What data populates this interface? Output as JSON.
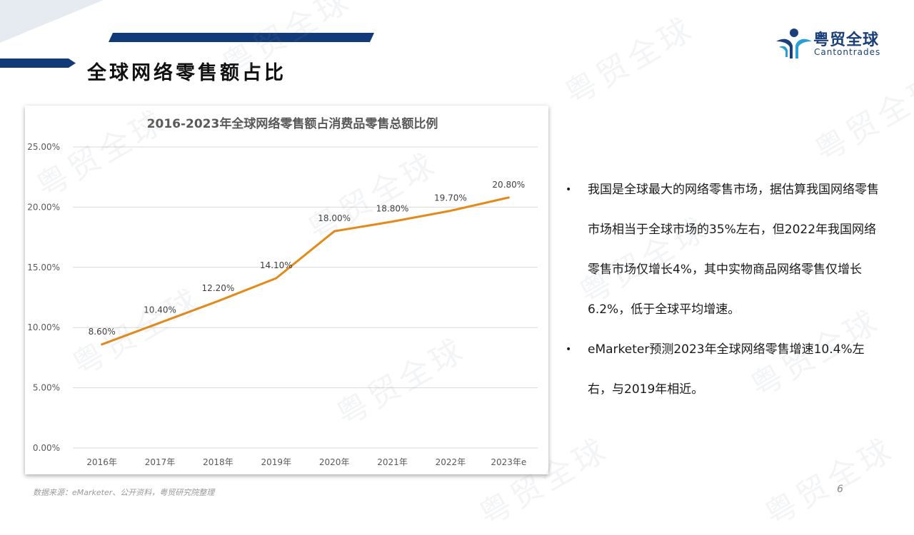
{
  "page": {
    "title": "全球网络零售额占比",
    "source": "数据来源：eMarketer、公开资料，粤贸研究院整理",
    "page_number": "6",
    "watermark": "粤贸全球"
  },
  "logo": {
    "name_cn": "粤贸全球",
    "name_en": "Cantontrades",
    "color": "#1a3f7a"
  },
  "colors": {
    "accent": "#123a78",
    "line": "#e38a1a",
    "grid": "#d9d9d9"
  },
  "bullets": [
    "我国是全球最大的网络零售市场，据估算我国网络零售市场相当于全球市场的35%左右，但2022年我国网络零售市场仅增长4%，其中实物商品网络零售仅增长6.2%，低于全球平均增速。",
    "eMarketer预测2023年全球网络零售增速10.4%左右，与2019年相近。"
  ],
  "chart_data": {
    "type": "line",
    "title": "2016-2023年全球网络零售额占消费品零售总额比例",
    "categories": [
      "2016年",
      "2017年",
      "2018年",
      "2019年",
      "2020年",
      "2021年",
      "2022年",
      "2023年e"
    ],
    "values": [
      8.6,
      10.4,
      12.2,
      14.1,
      18.0,
      18.8,
      19.7,
      20.8
    ],
    "value_labels": [
      "8.60%",
      "10.40%",
      "12.20%",
      "14.10%",
      "18.00%",
      "18.80%",
      "19.70%",
      "20.80%"
    ],
    "y_ticks": [
      0,
      5,
      10,
      15,
      20,
      25
    ],
    "y_tick_labels": [
      "0.00%",
      "5.00%",
      "10.00%",
      "15.00%",
      "20.00%",
      "25.00%"
    ],
    "ylim": [
      0,
      25
    ],
    "grid": true,
    "legend": "none"
  }
}
